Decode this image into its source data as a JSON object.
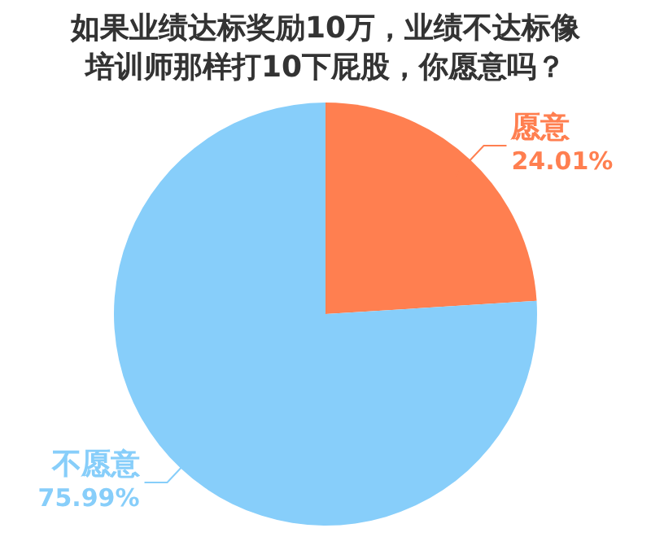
{
  "chart_data": {
    "type": "pie",
    "title": "如果业绩达标奖励10万，业绩不达标像培训师那样打10下屁股，你愿意吗？",
    "categories": [
      "愿意",
      "不愿意"
    ],
    "values": [
      24.01,
      75.99
    ],
    "colors": [
      "#ff7f50",
      "#87cefa"
    ],
    "value_labels": [
      "24.01%",
      "75.99%"
    ],
    "legend": false
  }
}
